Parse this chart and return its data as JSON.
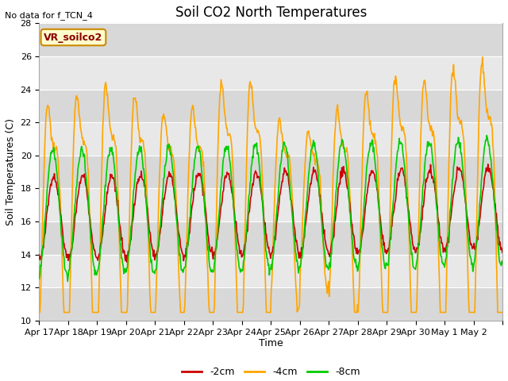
{
  "title": "Soil CO2 North Temperatures",
  "no_data_text": "No data for f_TCN_4",
  "ylabel": "Soil Temperatures (C)",
  "xlabel": "Time",
  "ylim": [
    10,
    28
  ],
  "legend_label": "VR_soilco2",
  "series": {
    "-2cm": {
      "color": "#cc0000",
      "linewidth": 1.2
    },
    "-4cm": {
      "color": "#ffa500",
      "linewidth": 1.2
    },
    "-8cm": {
      "color": "#00cc00",
      "linewidth": 1.2
    }
  },
  "tick_labels": [
    "Apr 17",
    "Apr 18",
    "Apr 19",
    "Apr 20",
    "Apr 21",
    "Apr 22",
    "Apr 23",
    "Apr 24",
    "Apr 25",
    "Apr 26",
    "Apr 27",
    "Apr 28",
    "Apr 29",
    "Apr 30",
    "May 1",
    "May 2"
  ],
  "plot_bg_color": "#e8e8e8",
  "grid_color": "#ffffff",
  "title_fontsize": 12,
  "axis_label_fontsize": 9,
  "tick_fontsize": 8,
  "legend_fontsize": 9
}
